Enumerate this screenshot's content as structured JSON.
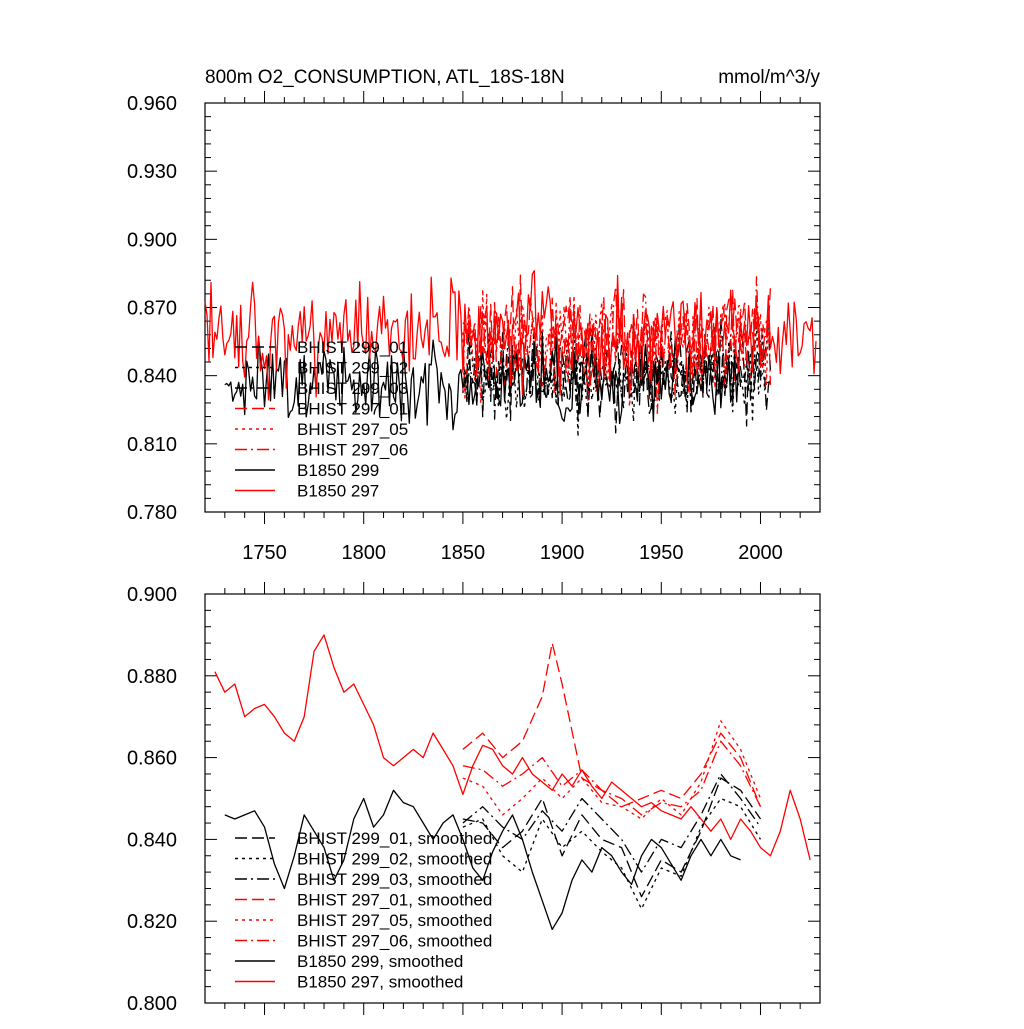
{
  "chart_data": [
    {
      "type": "line",
      "title": "800m O2_CONSUMPTION, ATL_18S-18N",
      "units": "mmol/m^3/y",
      "xlim": [
        1720,
        2030
      ],
      "ylim": [
        0.78,
        0.96
      ],
      "x_ticks": [
        1750,
        1800,
        1850,
        1900,
        1950,
        2000
      ],
      "y_ticks": [
        "0.780",
        "0.810",
        "0.840",
        "0.870",
        "0.900",
        "0.930",
        "0.960"
      ],
      "legend_position": "lower-left",
      "series": [
        {
          "name": "BHIST 299_01",
          "color": "#000000",
          "dash": "dash",
          "x_start": 1850,
          "x_end": 2005,
          "mean": 0.841,
          "amp": 0.018,
          "seed": 11
        },
        {
          "name": "BHIST 299_02",
          "color": "#000000",
          "dash": "dot",
          "x_start": 1850,
          "x_end": 2005,
          "mean": 0.839,
          "amp": 0.018,
          "seed": 12
        },
        {
          "name": "BHIST 299_03",
          "color": "#000000",
          "dash": "dashdot",
          "x_start": 1850,
          "x_end": 2005,
          "mean": 0.842,
          "amp": 0.017,
          "seed": 13
        },
        {
          "name": "BHIST 297_01",
          "color": "#ff0000",
          "dash": "dash",
          "x_start": 1850,
          "x_end": 2005,
          "mean": 0.856,
          "amp": 0.02,
          "seed": 14
        },
        {
          "name": "BHIST 297_05",
          "color": "#ff0000",
          "dash": "dot",
          "x_start": 1850,
          "x_end": 2005,
          "mean": 0.855,
          "amp": 0.02,
          "seed": 15
        },
        {
          "name": "BHIST 297_06",
          "color": "#ff0000",
          "dash": "dashdot",
          "x_start": 1850,
          "x_end": 2005,
          "mean": 0.854,
          "amp": 0.02,
          "seed": 16
        },
        {
          "name": "B1850 299",
          "color": "#000000",
          "dash": "solid",
          "x_start": 1730,
          "x_end": 1990,
          "mean": 0.838,
          "amp": 0.016,
          "seed": 17
        },
        {
          "name": "B1850 297",
          "color": "#ff0000",
          "dash": "solid",
          "x_start": 1720,
          "x_end": 2028,
          "mean": 0.857,
          "amp": 0.02,
          "seed": 18
        }
      ]
    },
    {
      "type": "line",
      "title": "",
      "xlim": [
        1720,
        2030
      ],
      "ylim": [
        0.8,
        0.9
      ],
      "y_ticks": [
        "0.800",
        "0.820",
        "0.840",
        "0.860",
        "0.880",
        "0.900"
      ],
      "x_ticks": [
        1750,
        1800,
        1850,
        1900,
        1950,
        2000
      ],
      "legend_position": "lower-left",
      "series": [
        {
          "name": "BHIST 299_01, smoothed",
          "color": "#000000",
          "dash": "dash",
          "x": [
            1850,
            1860,
            1870,
            1880,
            1890,
            1900,
            1910,
            1920,
            1930,
            1940,
            1950,
            1960,
            1970,
            1980,
            1990,
            2000
          ],
          "y": [
            0.845,
            0.844,
            0.838,
            0.842,
            0.85,
            0.836,
            0.846,
            0.84,
            0.838,
            0.826,
            0.835,
            0.832,
            0.842,
            0.855,
            0.852,
            0.845
          ]
        },
        {
          "name": "BHIST 299_02, smoothed",
          "color": "#000000",
          "dash": "dot",
          "x": [
            1850,
            1860,
            1870,
            1880,
            1890,
            1900,
            1910,
            1920,
            1930,
            1940,
            1950,
            1960,
            1970,
            1980,
            1990,
            2000
          ],
          "y": [
            0.843,
            0.845,
            0.836,
            0.832,
            0.845,
            0.838,
            0.842,
            0.837,
            0.833,
            0.823,
            0.833,
            0.831,
            0.843,
            0.85,
            0.848,
            0.84
          ]
        },
        {
          "name": "BHIST 299_03, smoothed",
          "color": "#000000",
          "dash": "dashdot",
          "x": [
            1850,
            1860,
            1870,
            1880,
            1890,
            1900,
            1910,
            1920,
            1930,
            1940,
            1950,
            1960,
            1970,
            1980,
            1990,
            2000
          ],
          "y": [
            0.844,
            0.848,
            0.843,
            0.84,
            0.847,
            0.842,
            0.85,
            0.845,
            0.84,
            0.832,
            0.84,
            0.838,
            0.846,
            0.856,
            0.85,
            0.843
          ]
        },
        {
          "name": "BHIST 297_01, smoothed",
          "color": "#ff0000",
          "dash": "dash",
          "x": [
            1850,
            1860,
            1870,
            1880,
            1890,
            1895,
            1900,
            1910,
            1920,
            1930,
            1940,
            1950,
            1960,
            1970,
            1980,
            1990,
            2000
          ],
          "y": [
            0.862,
            0.866,
            0.86,
            0.864,
            0.875,
            0.888,
            0.878,
            0.855,
            0.852,
            0.848,
            0.85,
            0.852,
            0.85,
            0.856,
            0.866,
            0.86,
            0.848
          ]
        },
        {
          "name": "BHIST 297_05, smoothed",
          "color": "#ff0000",
          "dash": "dot",
          "x": [
            1850,
            1860,
            1870,
            1880,
            1890,
            1900,
            1910,
            1920,
            1930,
            1940,
            1950,
            1960,
            1970,
            1980,
            1990,
            2000
          ],
          "y": [
            0.855,
            0.853,
            0.846,
            0.85,
            0.855,
            0.85,
            0.855,
            0.849,
            0.848,
            0.845,
            0.85,
            0.846,
            0.854,
            0.869,
            0.862,
            0.85
          ]
        },
        {
          "name": "BHIST 297_06, smoothed",
          "color": "#ff0000",
          "dash": "dashdot",
          "x": [
            1850,
            1860,
            1870,
            1880,
            1890,
            1900,
            1910,
            1920,
            1930,
            1940,
            1950,
            1960,
            1970,
            1980,
            1990,
            2000
          ],
          "y": [
            0.858,
            0.857,
            0.853,
            0.856,
            0.86,
            0.853,
            0.857,
            0.852,
            0.85,
            0.846,
            0.849,
            0.848,
            0.852,
            0.864,
            0.858,
            0.848
          ]
        },
        {
          "name": "B1850 299, smoothed",
          "color": "#000000",
          "dash": "solid",
          "x": [
            1730,
            1735,
            1740,
            1745,
            1750,
            1755,
            1760,
            1765,
            1770,
            1775,
            1780,
            1785,
            1790,
            1795,
            1800,
            1805,
            1810,
            1815,
            1820,
            1825,
            1830,
            1835,
            1840,
            1845,
            1850,
            1855,
            1860,
            1865,
            1870,
            1875,
            1880,
            1885,
            1890,
            1895,
            1900,
            1905,
            1910,
            1915,
            1920,
            1925,
            1930,
            1935,
            1940,
            1945,
            1950,
            1955,
            1960,
            1965,
            1970,
            1975,
            1980,
            1985,
            1990
          ],
          "y": [
            0.846,
            0.845,
            0.846,
            0.847,
            0.843,
            0.834,
            0.828,
            0.836,
            0.846,
            0.842,
            0.838,
            0.83,
            0.835,
            0.845,
            0.85,
            0.843,
            0.846,
            0.852,
            0.849,
            0.848,
            0.844,
            0.84,
            0.844,
            0.846,
            0.84,
            0.833,
            0.83,
            0.837,
            0.842,
            0.846,
            0.84,
            0.832,
            0.825,
            0.818,
            0.822,
            0.83,
            0.835,
            0.832,
            0.838,
            0.836,
            0.832,
            0.829,
            0.836,
            0.84,
            0.838,
            0.834,
            0.83,
            0.836,
            0.84,
            0.836,
            0.84,
            0.836,
            0.835
          ]
        },
        {
          "name": "B1850 297, smoothed",
          "color": "#ff0000",
          "dash": "solid",
          "x": [
            1725,
            1730,
            1735,
            1740,
            1745,
            1750,
            1755,
            1760,
            1765,
            1770,
            1775,
            1780,
            1785,
            1790,
            1795,
            1800,
            1805,
            1810,
            1815,
            1820,
            1825,
            1830,
            1835,
            1840,
            1845,
            1850,
            1855,
            1860,
            1865,
            1870,
            1875,
            1880,
            1885,
            1890,
            1895,
            1900,
            1905,
            1910,
            1915,
            1920,
            1925,
            1930,
            1935,
            1940,
            1945,
            1950,
            1955,
            1960,
            1965,
            1970,
            1975,
            1980,
            1985,
            1990,
            1995,
            2000,
            2005,
            2010,
            2015,
            2020,
            2025
          ],
          "y": [
            0.881,
            0.876,
            0.878,
            0.87,
            0.872,
            0.873,
            0.87,
            0.866,
            0.864,
            0.87,
            0.886,
            0.89,
            0.882,
            0.876,
            0.878,
            0.873,
            0.868,
            0.86,
            0.858,
            0.86,
            0.862,
            0.86,
            0.866,
            0.862,
            0.858,
            0.851,
            0.858,
            0.863,
            0.862,
            0.858,
            0.856,
            0.86,
            0.856,
            0.854,
            0.852,
            0.856,
            0.853,
            0.857,
            0.853,
            0.85,
            0.854,
            0.852,
            0.85,
            0.848,
            0.849,
            0.847,
            0.846,
            0.845,
            0.848,
            0.845,
            0.842,
            0.845,
            0.84,
            0.845,
            0.842,
            0.838,
            0.836,
            0.842,
            0.852,
            0.845,
            0.835
          ]
        }
      ]
    }
  ]
}
